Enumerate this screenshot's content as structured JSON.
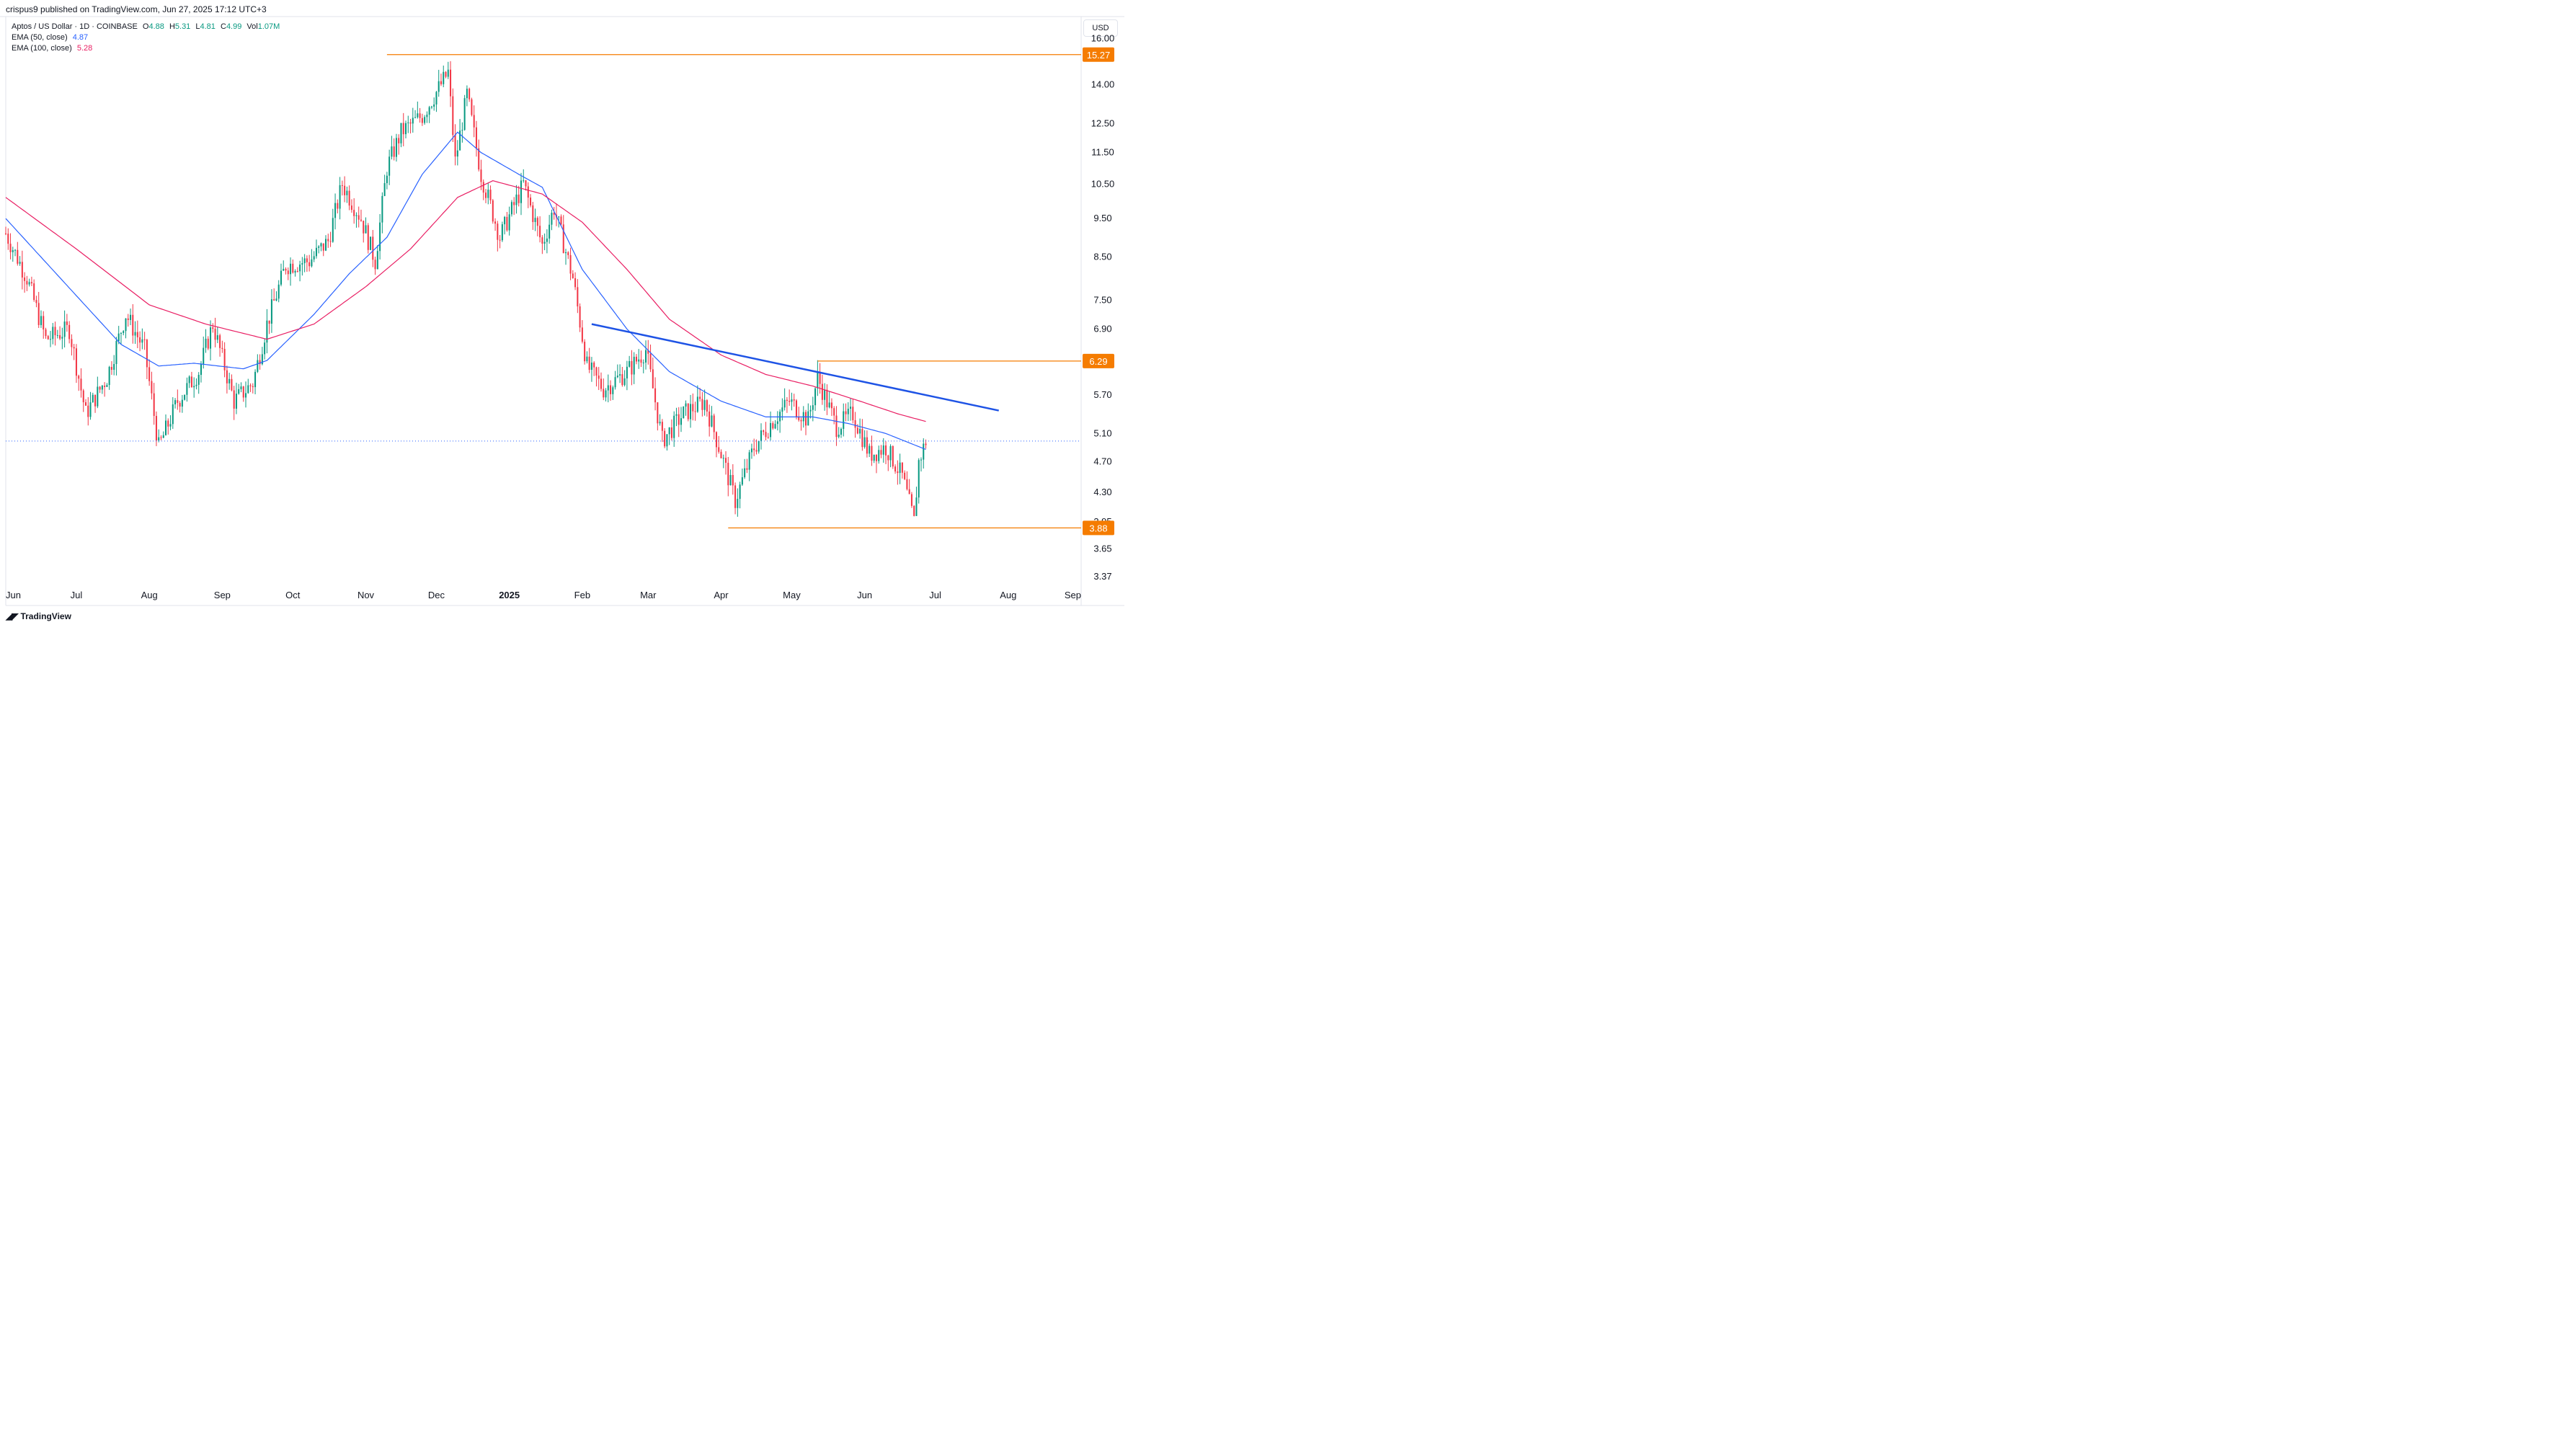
{
  "header": {
    "published_line": "crispus9 published on TradingView.com, Jun 27, 2025 17:12 UTC+3"
  },
  "legend": {
    "symbol_line": "Aptos / US Dollar · 1D · COINBASE",
    "o_label": "O",
    "o_value": "4.88",
    "h_label": "H",
    "h_value": "5.31",
    "l_label": "L",
    "l_value": "4.81",
    "c_label": "C",
    "c_value": "4.99",
    "vol_label": "Vol",
    "vol_value": "1.07M",
    "ema50_label": "EMA (50, close)",
    "ema50_value": "4.87",
    "ema100_label": "EMA (100, close)",
    "ema100_value": "5.28"
  },
  "currency_button": "USD",
  "footer": {
    "brand": "TradingView"
  },
  "colors": {
    "up": "#089981",
    "down": "#f23645",
    "ema50": "#2962ff",
    "ema100": "#e91e63",
    "level": "#f57c00",
    "trendline": "#1e53e5",
    "price_line": "#2962ff"
  },
  "chart_data": {
    "type": "candlestick",
    "scale": "log",
    "ylim": [
      3.3,
      16.8
    ],
    "y_ticks": [
      "16.00",
      "14.00",
      "12.50",
      "11.50",
      "10.50",
      "9.50",
      "8.50",
      "7.50",
      "6.90",
      "5.70",
      "5.10",
      "4.70",
      "4.30",
      "3.95",
      "3.65",
      "3.37"
    ],
    "x_ticks": [
      {
        "label": "Jun",
        "date": "2024-06-01"
      },
      {
        "label": "Jul",
        "date": "2024-07-01"
      },
      {
        "label": "Aug",
        "date": "2024-08-01"
      },
      {
        "label": "Sep",
        "date": "2024-09-01"
      },
      {
        "label": "Oct",
        "date": "2024-10-01"
      },
      {
        "label": "Nov",
        "date": "2024-11-01"
      },
      {
        "label": "Dec",
        "date": "2024-12-01"
      },
      {
        "label": "2025",
        "date": "2025-01-01",
        "bold": true
      },
      {
        "label": "Feb",
        "date": "2025-02-01"
      },
      {
        "label": "Mar",
        "date": "2025-03-01"
      },
      {
        "label": "Apr",
        "date": "2025-04-01"
      },
      {
        "label": "May",
        "date": "2025-05-01"
      },
      {
        "label": "Jun",
        "date": "2025-06-01"
      },
      {
        "label": "Jul",
        "date": "2025-07-01"
      },
      {
        "label": "Aug",
        "date": "2025-08-01"
      },
      {
        "label": "Sep",
        "date": "2025-09-01"
      }
    ],
    "x_range": [
      "2024-06-01",
      "2025-09-01"
    ],
    "close_anchors": [
      [
        "2024-06-01",
        9.1
      ],
      [
        "2024-06-10",
        8.0
      ],
      [
        "2024-06-18",
        6.7
      ],
      [
        "2024-06-28",
        6.9
      ],
      [
        "2024-07-05",
        5.4
      ],
      [
        "2024-07-14",
        6.0
      ],
      [
        "2024-07-22",
        7.2
      ],
      [
        "2024-07-30",
        6.5
      ],
      [
        "2024-08-05",
        4.9
      ],
      [
        "2024-08-13",
        5.6
      ],
      [
        "2024-08-22",
        6.1
      ],
      [
        "2024-08-28",
        7.0
      ],
      [
        "2024-09-06",
        5.6
      ],
      [
        "2024-09-14",
        5.9
      ],
      [
        "2024-09-20",
        7.0
      ],
      [
        "2024-09-28",
        8.3
      ],
      [
        "2024-10-08",
        8.4
      ],
      [
        "2024-10-16",
        8.9
      ],
      [
        "2024-10-22",
        10.5
      ],
      [
        "2024-10-30",
        9.5
      ],
      [
        "2024-11-05",
        8.4
      ],
      [
        "2024-11-10",
        11.0
      ],
      [
        "2024-11-16",
        12.2
      ],
      [
        "2024-11-25",
        12.8
      ],
      [
        "2024-12-06",
        14.5
      ],
      [
        "2024-12-09",
        11.2
      ],
      [
        "2024-12-14",
        13.6
      ],
      [
        "2024-12-20",
        10.8
      ],
      [
        "2024-12-28",
        9.0
      ],
      [
        "2025-01-07",
        10.5
      ],
      [
        "2025-01-15",
        8.8
      ],
      [
        "2025-01-20",
        9.8
      ],
      [
        "2025-01-28",
        8.0
      ],
      [
        "2025-02-03",
        6.2
      ],
      [
        "2025-02-10",
        5.8
      ],
      [
        "2025-02-20",
        6.1
      ],
      [
        "2025-02-28",
        6.5
      ],
      [
        "2025-03-07",
        5.0
      ],
      [
        "2025-03-16",
        5.4
      ],
      [
        "2025-03-25",
        5.6
      ],
      [
        "2025-04-03",
        4.6
      ],
      [
        "2025-04-07",
        4.2
      ],
      [
        "2025-04-15",
        4.9
      ],
      [
        "2025-04-23",
        5.3
      ],
      [
        "2025-04-30",
        5.6
      ],
      [
        "2025-05-08",
        5.3
      ],
      [
        "2025-05-12",
        6.0
      ],
      [
        "2025-05-20",
        5.2
      ],
      [
        "2025-05-27",
        5.4
      ],
      [
        "2025-06-03",
        4.8
      ],
      [
        "2025-06-10",
        4.9
      ],
      [
        "2025-06-17",
        4.5
      ],
      [
        "2025-06-22",
        3.95
      ],
      [
        "2025-06-24",
        4.7
      ],
      [
        "2025-06-27",
        4.99
      ]
    ],
    "ema50_anchors": [
      [
        "2024-06-01",
        9.5
      ],
      [
        "2024-07-01",
        7.6
      ],
      [
        "2024-07-20",
        6.6
      ],
      [
        "2024-08-05",
        6.2
      ],
      [
        "2024-08-20",
        6.25
      ],
      [
        "2024-09-10",
        6.15
      ],
      [
        "2024-09-20",
        6.3
      ],
      [
        "2024-10-10",
        7.2
      ],
      [
        "2024-10-25",
        8.1
      ],
      [
        "2024-11-10",
        9.0
      ],
      [
        "2024-11-25",
        10.8
      ],
      [
        "2024-12-10",
        12.2
      ],
      [
        "2024-12-20",
        11.5
      ],
      [
        "2025-01-05",
        10.8
      ],
      [
        "2025-01-15",
        10.4
      ],
      [
        "2025-02-01",
        8.2
      ],
      [
        "2025-02-20",
        6.9
      ],
      [
        "2025-03-10",
        6.1
      ],
      [
        "2025-04-01",
        5.6
      ],
      [
        "2025-04-20",
        5.35
      ],
      [
        "2025-05-10",
        5.35
      ],
      [
        "2025-05-25",
        5.25
      ],
      [
        "2025-06-10",
        5.1
      ],
      [
        "2025-06-27",
        4.87
      ]
    ],
    "ema100_anchors": [
      [
        "2024-06-01",
        10.1
      ],
      [
        "2024-07-01",
        8.7
      ],
      [
        "2024-08-01",
        7.4
      ],
      [
        "2024-08-25",
        7.0
      ],
      [
        "2024-09-20",
        6.7
      ],
      [
        "2024-10-10",
        7.0
      ],
      [
        "2024-11-01",
        7.8
      ],
      [
        "2024-11-20",
        8.7
      ],
      [
        "2024-12-10",
        10.1
      ],
      [
        "2024-12-25",
        10.6
      ],
      [
        "2025-01-15",
        10.2
      ],
      [
        "2025-02-01",
        9.4
      ],
      [
        "2025-02-20",
        8.2
      ],
      [
        "2025-03-10",
        7.1
      ],
      [
        "2025-04-01",
        6.4
      ],
      [
        "2025-04-20",
        6.05
      ],
      [
        "2025-05-10",
        5.85
      ],
      [
        "2025-05-30",
        5.6
      ],
      [
        "2025-06-15",
        5.4
      ],
      [
        "2025-06-27",
        5.28
      ]
    ],
    "annotations": {
      "levels": [
        {
          "price": 15.27,
          "label": "15.27",
          "from": "2024-11-10"
        },
        {
          "price": 6.29,
          "label": "6.29",
          "from": "2025-05-12"
        },
        {
          "price": 3.88,
          "label": "3.88",
          "from": "2025-04-04"
        }
      ],
      "trendline": {
        "from": [
          "2025-02-05",
          7.0
        ],
        "to": [
          "2025-07-28",
          5.45
        ]
      },
      "last_price": 4.99
    }
  }
}
